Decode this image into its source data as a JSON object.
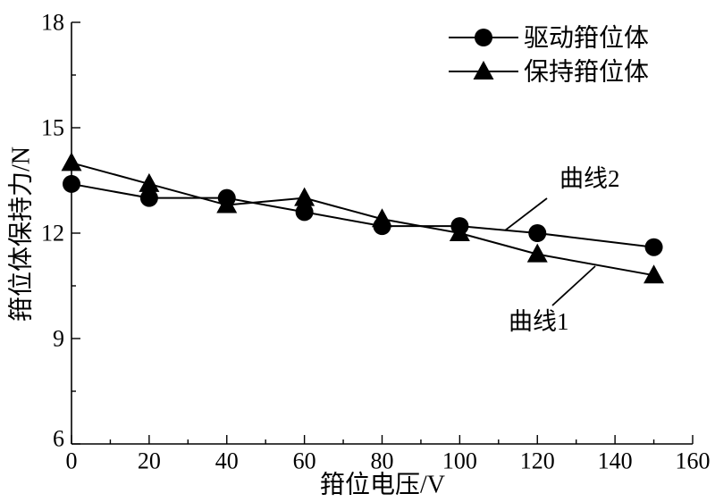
{
  "chart_data": {
    "type": "line",
    "x": [
      0,
      20,
      40,
      60,
      80,
      100,
      120,
      150
    ],
    "series": [
      {
        "name": "驱动箝位体",
        "marker": "circle",
        "color": "#000000",
        "values": [
          13.4,
          13.0,
          13.0,
          12.6,
          12.2,
          12.2,
          12.0,
          11.6
        ]
      },
      {
        "name": "保持箝位体",
        "marker": "triangle",
        "color": "#000000",
        "values": [
          14.0,
          13.4,
          12.8,
          13.0,
          12.4,
          12.0,
          11.4,
          10.8
        ]
      }
    ],
    "xlabel": "箝位电压/V",
    "ylabel": "箝位体保持力/N",
    "xlim": [
      0,
      160
    ],
    "ylim": [
      6,
      18
    ],
    "xticks": [
      0,
      20,
      40,
      60,
      80,
      100,
      120,
      140,
      160
    ],
    "yticks": [
      6,
      9,
      12,
      15,
      18
    ],
    "grid": false,
    "legend": "top-right",
    "annotations": [
      {
        "text": "曲线2"
      },
      {
        "text": "曲线1"
      }
    ]
  }
}
